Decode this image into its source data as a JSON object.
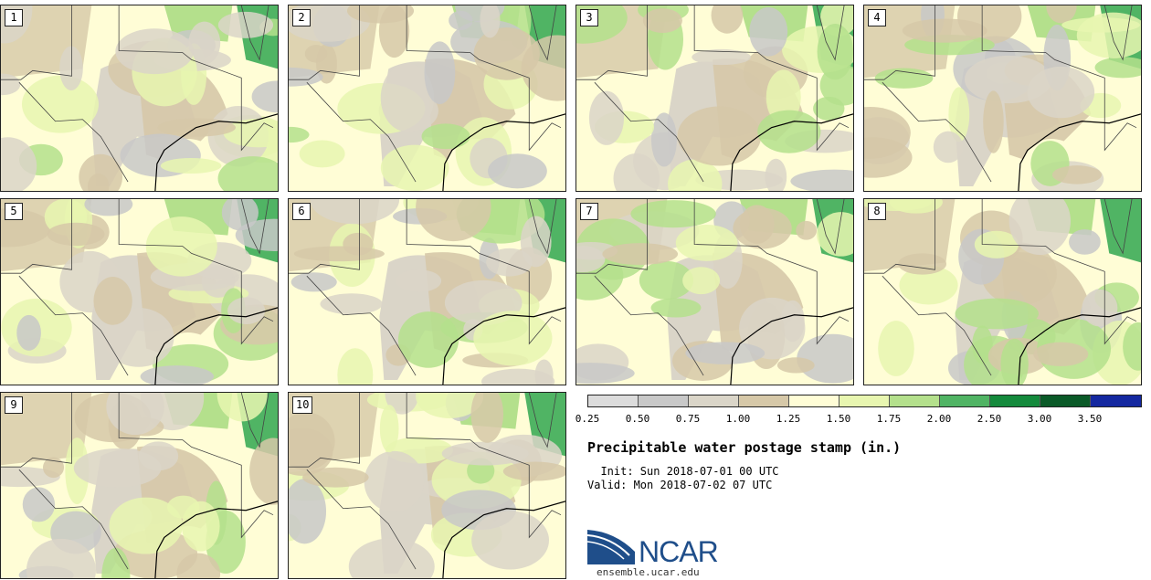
{
  "panels": [
    {
      "label": "1"
    },
    {
      "label": "2"
    },
    {
      "label": "3"
    },
    {
      "label": "4"
    },
    {
      "label": "5"
    },
    {
      "label": "6"
    },
    {
      "label": "7"
    },
    {
      "label": "8"
    },
    {
      "label": "9"
    },
    {
      "label": "10"
    }
  ],
  "colorbar": {
    "colors": [
      "#dcdcdc",
      "#c8c8c8",
      "#dad5c8",
      "#d6c8a8",
      "#fffdd6",
      "#e8f6b0",
      "#b4e08c",
      "#50b464",
      "#148a3c",
      "#0a5a28",
      "#1428a0"
    ],
    "ticks": [
      "0.25",
      "0.50",
      "0.75",
      "1.00",
      "1.25",
      "1.50",
      "1.75",
      "2.00",
      "2.50",
      "3.00",
      "3.50"
    ]
  },
  "legend": {
    "title": "Precipitable water postage stamp (in.)",
    "init": "  Init: Sun 2018-07-01 00 UTC",
    "valid": "Valid: Mon 2018-07-02 07 UTC"
  },
  "logo": {
    "text": "NCAR",
    "url": "ensemble.ucar.edu"
  }
}
